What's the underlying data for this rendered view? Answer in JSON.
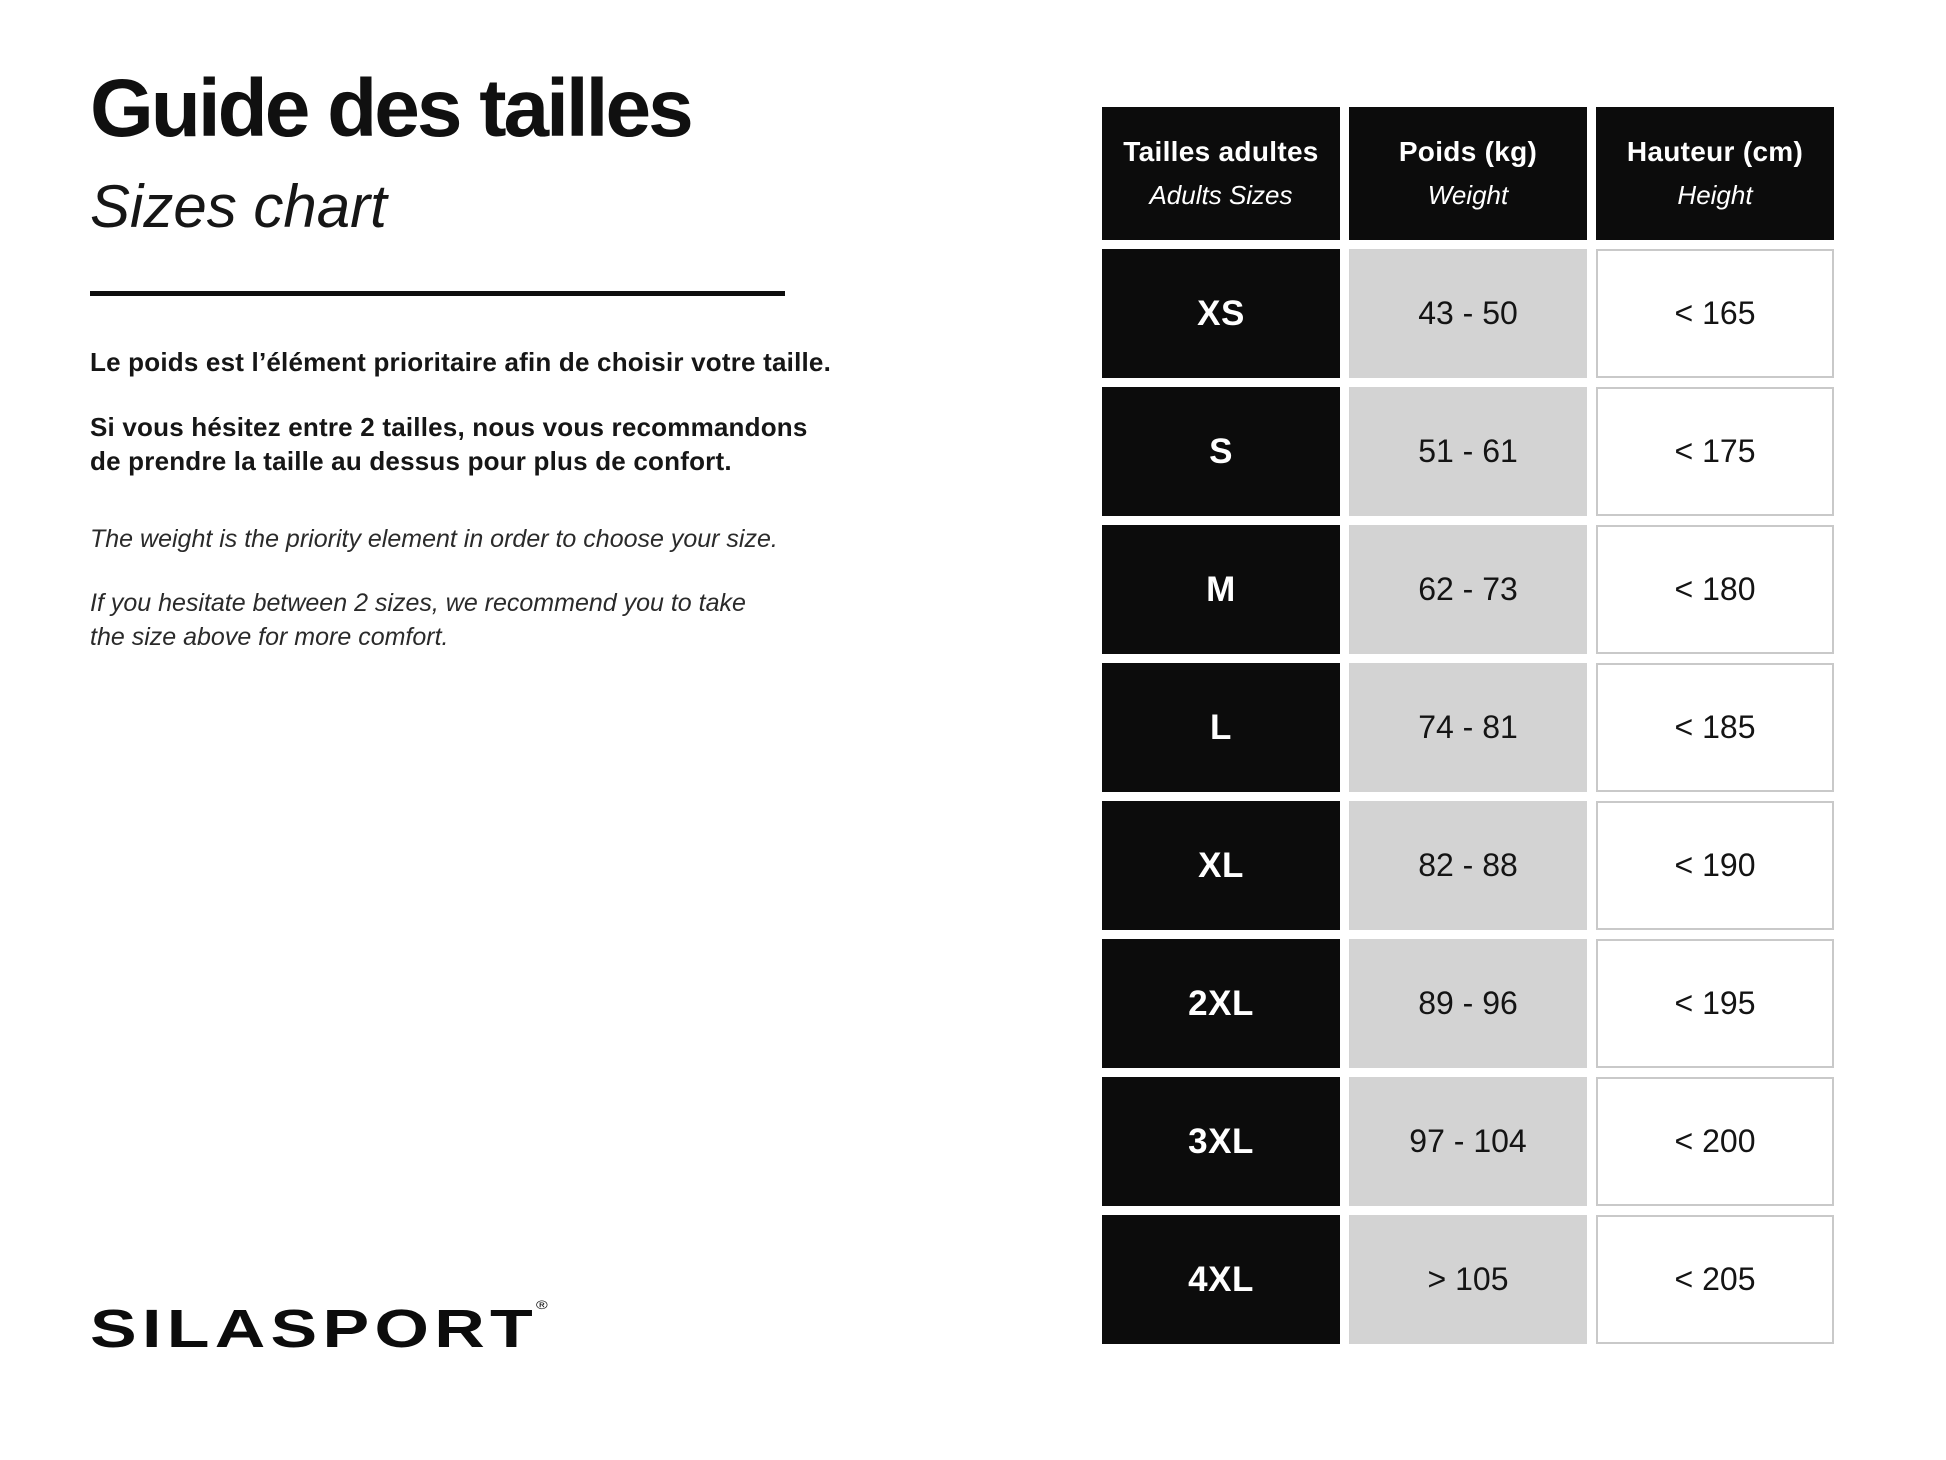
{
  "page": {
    "title_fr": "Guide des tailles",
    "title_en": "Sizes chart",
    "brand": "SILASPORT",
    "brand_mark": "®"
  },
  "content": {
    "intro_fr_1": "Le poids est l’élément prioritaire afin de choisir votre taille.",
    "intro_fr_2_lines": [
      "Si vous hésitez entre 2 tailles, nous vous recommandons",
      "de prendre la taille au dessus pour plus de confort."
    ],
    "intro_en_1": "The weight is the priority element in order to choose your size.",
    "intro_en_2_lines": [
      "If you hesitate between 2 sizes, we recommend you to take",
      "the size above for more comfort."
    ]
  },
  "colors": {
    "cell_black": "#0c0c0c",
    "cell_gray": "#d3d3d3",
    "cell_border": "#c9c9c9",
    "text": "#1c1c1c"
  },
  "table": {
    "headers": [
      {
        "fr": "Tailles adultes",
        "en": "Adults Sizes"
      },
      {
        "fr": "Poids (kg)",
        "en": "Weight"
      },
      {
        "fr": "Hauteur (cm)",
        "en": "Height"
      }
    ],
    "rows": [
      {
        "size": "XS",
        "weight": "43 - 50",
        "height": "< 165"
      },
      {
        "size": "S",
        "weight": "51 - 61",
        "height": "< 175"
      },
      {
        "size": "M",
        "weight": "62 - 73",
        "height": "< 180"
      },
      {
        "size": "L",
        "weight": "74 - 81",
        "height": "< 185"
      },
      {
        "size": "XL",
        "weight": "82 - 88",
        "height": "< 190"
      },
      {
        "size": "2XL",
        "weight": "89 - 96",
        "height": "< 195"
      },
      {
        "size": "3XL",
        "weight": "97 - 104",
        "height": "< 200"
      },
      {
        "size": "4XL",
        "weight": "> 105",
        "height": "< 205"
      }
    ]
  }
}
